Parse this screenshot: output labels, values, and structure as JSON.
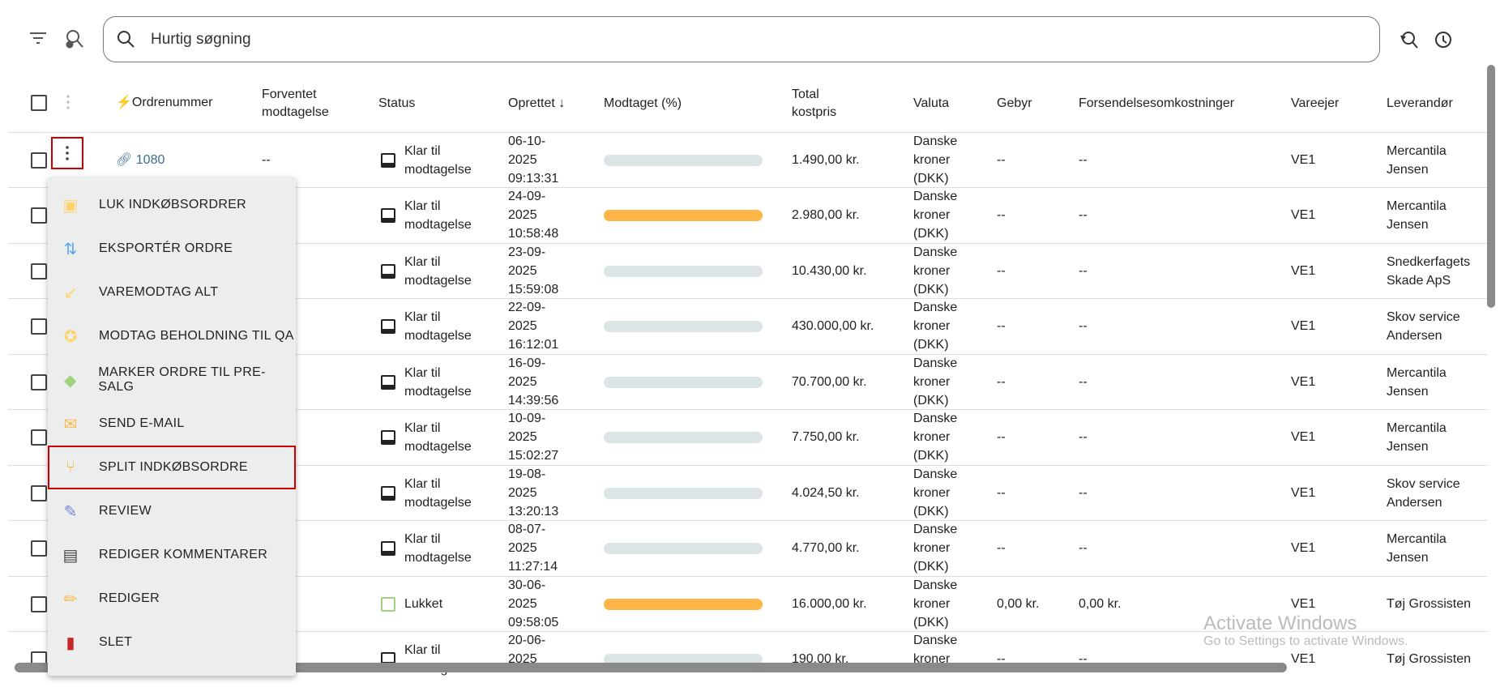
{
  "toolbar": {
    "search_placeholder": "Hurtig søgning"
  },
  "columns": [
    "Ordrenummer",
    "Forventet modtagelse",
    "Status",
    "Oprettet",
    "Modtaget (%)",
    "Total kostpris",
    "Valuta",
    "Gebyr",
    "Forsendelsesomkostninger",
    "Vareejer",
    "Leverandør"
  ],
  "rows": [
    {
      "order": "1080",
      "expected": "--",
      "status": "Klar til modtagelse",
      "created": "06-10-2025 09:13:31",
      "received_pct": 0,
      "total": "1.490,00 kr.",
      "currency": "Danske kroner (DKK)",
      "fee": "--",
      "shipping": "--",
      "owner": "VE1",
      "supplier": "Mercantila Jensen"
    },
    {
      "order": "",
      "expected": "",
      "status": "Klar til modtagelse",
      "created": "24-09-2025 10:58:48",
      "received_pct": 100,
      "total": "2.980,00 kr.",
      "currency": "Danske kroner (DKK)",
      "fee": "--",
      "shipping": "--",
      "owner": "VE1",
      "supplier": "Mercantila Jensen"
    },
    {
      "order": "",
      "expected": "",
      "status": "Klar til modtagelse",
      "created": "23-09-2025 15:59:08",
      "received_pct": 0,
      "total": "10.430,00 kr.",
      "currency": "Danske kroner (DKK)",
      "fee": "--",
      "shipping": "--",
      "owner": "VE1",
      "supplier": "Snedkerfagets Skade ApS"
    },
    {
      "order": "",
      "expected": "",
      "status": "Klar til modtagelse",
      "created": "22-09-2025 16:12:01",
      "received_pct": 0,
      "total": "430.000,00 kr.",
      "currency": "Danske kroner (DKK)",
      "fee": "--",
      "shipping": "--",
      "owner": "VE1",
      "supplier": "Skov service Andersen"
    },
    {
      "order": "",
      "expected": "",
      "status": "Klar til modtagelse",
      "created": "16-09-2025 14:39:56",
      "received_pct": 0,
      "total": "70.700,00 kr.",
      "currency": "Danske kroner (DKK)",
      "fee": "--",
      "shipping": "--",
      "owner": "VE1",
      "supplier": "Mercantila Jensen"
    },
    {
      "order": "",
      "expected": "",
      "status": "Klar til modtagelse",
      "created": "10-09-2025 15:02:27",
      "received_pct": 0,
      "total": "7.750,00 kr.",
      "currency": "Danske kroner (DKK)",
      "fee": "--",
      "shipping": "--",
      "owner": "VE1",
      "supplier": "Mercantila Jensen"
    },
    {
      "order": "",
      "expected": "",
      "status": "Klar til modtagelse",
      "created": "19-08-2025 13:20:13",
      "received_pct": 0,
      "total": "4.024,50 kr.",
      "currency": "Danske kroner (DKK)",
      "fee": "--",
      "shipping": "--",
      "owner": "VE1",
      "supplier": "Skov service Andersen"
    },
    {
      "order": "",
      "expected": "",
      "status": "Klar til modtagelse",
      "created": "08-07-2025 11:27:14",
      "received_pct": 0,
      "total": "4.770,00 kr.",
      "currency": "Danske kroner (DKK)",
      "fee": "--",
      "shipping": "--",
      "owner": "VE1",
      "supplier": "Mercantila Jensen"
    },
    {
      "order": "",
      "expected": "",
      "status": "Lukket",
      "created": "30-06-2025 09:58:05",
      "received_pct": 100,
      "total": "16.000,00 kr.",
      "currency": "Danske kroner (DKK)",
      "fee": "0,00 kr.",
      "shipping": "0,00 kr.",
      "owner": "VE1",
      "supplier": "Tøj Grossisten"
    },
    {
      "order": "",
      "expected": "",
      "status": "Klar til modtagelse",
      "created": "20-06-2025",
      "received_pct": 0,
      "total": "190,00 kr.",
      "currency": "Danske kroner",
      "fee": "--",
      "shipping": "--",
      "owner": "VE1",
      "supplier": "Tøj Grossisten"
    }
  ],
  "menu": [
    {
      "label": "LUK INDKØBSORDRER",
      "icon": "calendar-check-icon",
      "color": "#ffd36b"
    },
    {
      "label": "EKSPORTÉR ORDRE",
      "icon": "swap-vertical-icon",
      "color": "#5aa9f0"
    },
    {
      "label": "VAREMODTAG ALT",
      "icon": "arrow-down-left-icon",
      "color": "#ffd36b"
    },
    {
      "label": "MODTAG BEHOLDNING TIL QA",
      "icon": "award-icon",
      "color": "#ffd36b"
    },
    {
      "label": "MARKER ORDRE TIL PRE-SALG",
      "icon": "tag-icon",
      "color": "#9ed37c"
    },
    {
      "label": "SEND E-MAIL",
      "icon": "mail-icon",
      "color": "#ffb547"
    },
    {
      "label": "SPLIT INDKØBSORDRE",
      "icon": "split-icon",
      "color": "#ffb547"
    },
    {
      "label": "REVIEW",
      "icon": "review-icon",
      "color": "#7a85d8"
    },
    {
      "label": "REDIGER KOMMENTARER",
      "icon": "comment-icon",
      "color": "#444"
    },
    {
      "label": "REDIGER",
      "icon": "pencil-icon",
      "color": "#ffb547"
    },
    {
      "label": "SLET",
      "icon": "trash-icon",
      "color": "#c62828"
    }
  ],
  "watermark": {
    "title": "Activate Windows",
    "subtitle": "Go to Settings to activate Windows."
  }
}
